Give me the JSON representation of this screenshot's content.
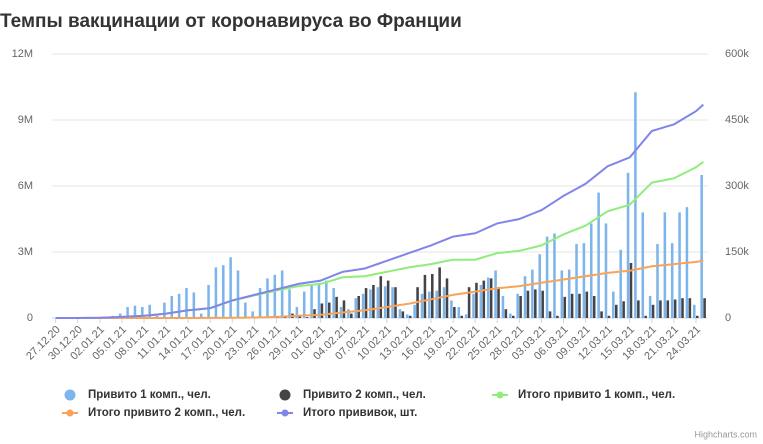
{
  "chart_data": {
    "type": "combo",
    "title": "Темпы вакцинации от коронавируса во Франции",
    "credits": "Highcharts.com",
    "categories": [
      "27.12.20",
      null,
      null,
      "30.12.20",
      null,
      null,
      "02.01.21",
      null,
      null,
      "05.01.21",
      null,
      null,
      "08.01.21",
      null,
      null,
      "11.01.21",
      null,
      null,
      "14.01.21",
      null,
      null,
      "17.01.21",
      null,
      null,
      "20.01.21",
      null,
      null,
      "23.01.21",
      null,
      null,
      "26.01.21",
      null,
      null,
      "29.01.21",
      null,
      null,
      "01.02.21",
      null,
      null,
      "04.02.21",
      null,
      null,
      "07.02.21",
      null,
      null,
      "10.02.21",
      null,
      null,
      "13.02.21",
      null,
      null,
      "16.02.21",
      null,
      null,
      "19.02.21",
      null,
      null,
      "22.02.21",
      null,
      null,
      "25.02.21",
      null,
      null,
      "28.02.21",
      null,
      null,
      "03.03.21",
      null,
      null,
      "06.03.21",
      null,
      null,
      "09.03.21",
      null,
      null,
      "12.03.21",
      null,
      null,
      "15.03.21",
      null,
      null,
      "18.03.21",
      null,
      null,
      "21.03.21",
      null,
      null,
      "24.03.21",
      null
    ],
    "ylim": [
      0,
      12000000
    ],
    "yticks": [
      0,
      {
        "value": 3000000,
        "label": "3M"
      },
      {
        "value": 6000000,
        "label": "6M"
      },
      {
        "value": 9000000,
        "label": "9M"
      },
      {
        "value": 12000000,
        "label": "12M"
      }
    ],
    "y2lim": [
      0,
      600000
    ],
    "y2ticks": [
      0,
      {
        "value": 150000,
        "label": "150k"
      },
      {
        "value": 300000,
        "label": "300k"
      },
      {
        "value": 450000,
        "label": "450k"
      },
      {
        "value": 600000,
        "label": "600k"
      }
    ],
    "grid": true,
    "legend": "bottom",
    "series": [
      {
        "name": "Привито 1 комп., чел.",
        "type": "column",
        "axis": "y2",
        "color": "#7cb5ec",
        "values": [
          0,
          0,
          0,
          0,
          1000,
          2000,
          2000,
          3000,
          5000,
          10000,
          25000,
          28000,
          25000,
          30000,
          5000,
          35000,
          50000,
          55000,
          68000,
          58000,
          10000,
          75000,
          115000,
          120000,
          138000,
          108000,
          35000,
          15000,
          68000,
          90000,
          98000,
          108000,
          65000,
          25000,
          60000,
          75000,
          80000,
          85000,
          68000,
          25000,
          20000,
          45000,
          55000,
          65000,
          70000,
          72000,
          70000,
          20000,
          8000,
          30000,
          55000,
          60000,
          62000,
          70000,
          40000,
          25000,
          8000,
          55000,
          75000,
          92000,
          108000,
          50000,
          10000,
          55000,
          95000,
          110000,
          145000,
          185000,
          192000,
          108000,
          110000,
          168000,
          170000,
          215000,
          285000,
          215000,
          60000,
          155000,
          330000,
          513000,
          240000,
          50000,
          168000,
          240000,
          170000,
          240000,
          252000,
          30000,
          325000
        ]
      },
      {
        "name": "Привито 2 комп., чел.",
        "type": "column",
        "axis": "y2",
        "color": "#434348",
        "values": [
          0,
          0,
          0,
          0,
          0,
          0,
          0,
          0,
          0,
          0,
          0,
          0,
          0,
          0,
          0,
          0,
          0,
          0,
          0,
          0,
          0,
          0,
          0,
          0,
          0,
          0,
          0,
          0,
          0,
          0,
          3000,
          5000,
          10000,
          5000,
          2000,
          20000,
          33000,
          35000,
          48000,
          40000,
          10000,
          50000,
          68000,
          75000,
          95000,
          85000,
          70000,
          15000,
          5000,
          70000,
          98000,
          100000,
          115000,
          90000,
          25000,
          5000,
          70000,
          80000,
          85000,
          90000,
          70000,
          20000,
          5000,
          50000,
          62000,
          65000,
          62000,
          15000,
          5000,
          48000,
          55000,
          55000,
          60000,
          50000,
          15000,
          5000,
          30000,
          38000,
          125000,
          40000,
          5000,
          30000,
          40000,
          40000,
          42000,
          45000,
          45000,
          5000,
          45000
        ]
      },
      {
        "name": "Итого привито 1 комп., чел.",
        "type": "line",
        "color": "#90ed7d",
        "values": [
          0,
          0,
          0,
          0,
          3000,
          7000,
          10000,
          23000,
          37000,
          50000,
          67000,
          83000,
          100000,
          133000,
          167000,
          200000,
          250000,
          300000,
          350000,
          381000,
          414000,
          445000,
          560000,
          675000,
          790000,
          870000,
          950000,
          1030000,
          1103000,
          1177000,
          1250000,
          1316000,
          1384000,
          1450000,
          1483000,
          1517000,
          1550000,
          1650000,
          1750000,
          1850000,
          1867000,
          1883000,
          1900000,
          1967000,
          2033000,
          2100000,
          2167000,
          2233000,
          2300000,
          2350000,
          2400000,
          2450000,
          2516000,
          2584000,
          2650000,
          2650000,
          2650000,
          2650000,
          2750000,
          2850000,
          2950000,
          2984000,
          3016000,
          3050000,
          3133000,
          3217000,
          3300000,
          3467000,
          3633000,
          3800000,
          3933000,
          4067000,
          4200000,
          4417000,
          4633000,
          4850000,
          4950000,
          5050000,
          5150000,
          5483000,
          5817000,
          6150000,
          6217000,
          6283000,
          6350000,
          6517000,
          6683000,
          6850000,
          7100000
        ]
      },
      {
        "name": "Итого привито 2 комп., чел.",
        "type": "line",
        "color": "#f7a35c",
        "values": [
          0,
          0,
          0,
          0,
          0,
          0,
          0,
          0,
          0,
          0,
          0,
          0,
          0,
          0,
          0,
          0,
          0,
          0,
          0,
          2000,
          3000,
          5000,
          7000,
          8000,
          10000,
          13000,
          17000,
          20000,
          30000,
          40000,
          50000,
          67000,
          83000,
          100000,
          117000,
          133000,
          150000,
          183000,
          217000,
          250000,
          283000,
          317000,
          350000,
          400000,
          450000,
          500000,
          550000,
          600000,
          650000,
          717000,
          783000,
          850000,
          917000,
          983000,
          1050000,
          1100000,
          1150000,
          1200000,
          1250000,
          1300000,
          1350000,
          1383000,
          1417000,
          1450000,
          1500000,
          1550000,
          1600000,
          1650000,
          1700000,
          1750000,
          1800000,
          1850000,
          1900000,
          1950000,
          2000000,
          2050000,
          2083000,
          2117000,
          2150000,
          2217000,
          2283000,
          2350000,
          2383000,
          2417000,
          2450000,
          2483000,
          2517000,
          2550000,
          2600000
        ]
      },
      {
        "name": "Итого прививок, шт.",
        "type": "line",
        "color": "#8085e9",
        "values": [
          0,
          0,
          0,
          0,
          3000,
          7000,
          10000,
          23000,
          37000,
          50000,
          67000,
          83000,
          100000,
          133000,
          167000,
          200000,
          250000,
          300000,
          350000,
          383000,
          417000,
          450000,
          567000,
          683000,
          800000,
          883000,
          967000,
          1050000,
          1133000,
          1217000,
          1300000,
          1383000,
          1467000,
          1550000,
          1600000,
          1650000,
          1700000,
          1833000,
          1967000,
          2100000,
          2150000,
          2200000,
          2250000,
          2367000,
          2483000,
          2600000,
          2717000,
          2833000,
          2950000,
          3067000,
          3183000,
          3300000,
          3433000,
          3567000,
          3700000,
          3750000,
          3800000,
          3850000,
          4000000,
          4150000,
          4300000,
          4367000,
          4433000,
          4500000,
          4633000,
          4767000,
          4900000,
          5117000,
          5333000,
          5550000,
          5733000,
          5917000,
          6100000,
          6367000,
          6633000,
          6900000,
          7033000,
          7167000,
          7300000,
          7700000,
          8100000,
          8500000,
          8600000,
          8700000,
          8800000,
          9000000,
          9200000,
          9400000,
          9700000
        ]
      }
    ]
  }
}
